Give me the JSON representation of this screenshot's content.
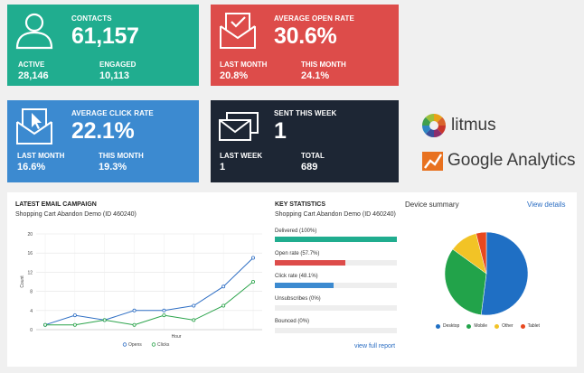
{
  "cards": {
    "contacts": {
      "title": "CONTACTS",
      "value": "61,157",
      "left_label": "ACTIVE",
      "left_value": "28,146",
      "right_label": "ENGAGED",
      "right_value": "10,113",
      "color": "#20ad8f",
      "icon": "person-icon"
    },
    "open_rate": {
      "title": "AVERAGE OPEN RATE",
      "value": "30.6%",
      "left_label": "LAST MONTH",
      "left_value": "20.8%",
      "right_label": "THIS MONTH",
      "right_value": "24.1%",
      "color": "#dd4c4a",
      "icon": "envelope-open-check-icon"
    },
    "click_rate": {
      "title": "AVERAGE CLICK RATE",
      "value": "22.1%",
      "left_label": "LAST MONTH",
      "left_value": "16.6%",
      "right_label": "THIS MONTH",
      "right_value": "19.3%",
      "color": "#3c8ad0",
      "icon": "envelope-cursor-icon"
    },
    "sent_week": {
      "title": "SENT THIS WEEK",
      "value": "1",
      "left_label": "LAST WEEK",
      "left_value": "1",
      "right_label": "TOTAL",
      "right_value": "689",
      "color": "#1d2634",
      "icon": "envelopes-icon"
    }
  },
  "brands": {
    "litmus": {
      "name": "litmus",
      "icon": "litmus-logo-icon"
    },
    "google_analytics": {
      "name": "Google Analytics",
      "icon": "google-analytics-logo-icon"
    }
  },
  "campaign": {
    "heading": "LATEST EMAIL CAMPAIGN",
    "name": "Shopping Cart Abandon Demo (ID 460240)"
  },
  "key_stats": {
    "heading": "KEY STATISTICS",
    "name": "Shopping Cart Abandon Demo (ID 460240)",
    "items": [
      {
        "label": "Delivered (100%)",
        "percent": 100,
        "color": "#20ad8f"
      },
      {
        "label": "Open rate (57.7%)",
        "percent": 57.7,
        "color": "#dd4c4a"
      },
      {
        "label": "Click rate (48.1%)",
        "percent": 48.1,
        "color": "#3c8ad0"
      },
      {
        "label": "Unsubscribes (0%)",
        "percent": 0,
        "color": "#999999"
      },
      {
        "label": "Bounced (0%)",
        "percent": 0,
        "color": "#999999"
      }
    ],
    "link": "view full report"
  },
  "device": {
    "heading": "Device summary",
    "link": "View details"
  },
  "chart_data": [
    {
      "type": "line",
      "xlabel": "Hour",
      "ylabel": "Count",
      "ylim": [
        0,
        20
      ],
      "yticks": [
        "0",
        "4",
        "8",
        "12",
        "16",
        "20"
      ],
      "x": [
        1,
        2,
        3,
        4,
        5,
        6,
        7,
        8
      ],
      "series": [
        {
          "name": "Opens",
          "color": "#2f6fc4",
          "values": [
            1,
            3,
            2,
            4,
            4,
            5,
            9,
            15
          ]
        },
        {
          "name": "Clicks",
          "color": "#2aa34a",
          "values": [
            1,
            1,
            2,
            1,
            3,
            2,
            5,
            10
          ]
        }
      ],
      "grid": true,
      "legend": "bottom"
    },
    {
      "type": "pie",
      "categories": [
        "Desktop",
        "Mobile",
        "Other",
        "Tablet"
      ],
      "values": [
        52,
        33,
        11,
        4
      ],
      "colors": [
        "#1f6fc4",
        "#22a34a",
        "#f2c326",
        "#e8481f"
      ],
      "legend": "bottom"
    }
  ]
}
